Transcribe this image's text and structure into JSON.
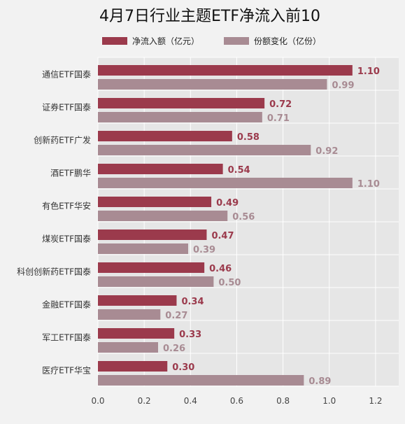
{
  "chart_data": {
    "type": "bar",
    "orientation": "horizontal",
    "title": "4月7日行业主题ETF净流入前10",
    "categories": [
      "通信ETF国泰",
      "证券ETF国泰",
      "创新药ETF广发",
      "酒ETF鹏华",
      "有色ETF华安",
      "煤炭ETF国泰",
      "科创创新药ETF国泰",
      "金融ETF国泰",
      "军工ETF国泰",
      "医疗ETF华宝"
    ],
    "series": [
      {
        "name": "净流入额（亿元）",
        "color": "#9b3a4c",
        "values": [
          1.1,
          0.72,
          0.58,
          0.54,
          0.49,
          0.47,
          0.46,
          0.34,
          0.33,
          0.3
        ],
        "labels": [
          "1.10",
          "0.72",
          "0.58",
          "0.54",
          "0.49",
          "0.47",
          "0.46",
          "0.34",
          "0.33",
          "0.30"
        ]
      },
      {
        "name": "份额变化（亿份）",
        "color": "#a88b93",
        "values": [
          0.99,
          0.71,
          0.92,
          1.1,
          0.56,
          0.39,
          0.5,
          0.27,
          0.26,
          0.89
        ],
        "labels": [
          "0.99",
          "0.71",
          "0.92",
          "1.10",
          "0.56",
          "0.39",
          "0.50",
          "0.27",
          "0.26",
          "0.89"
        ]
      }
    ],
    "xlim": [
      0,
      1.3
    ],
    "xticks": [
      "0.0",
      "0.2",
      "0.4",
      "0.6",
      "0.8",
      "1.0",
      "1.2"
    ],
    "grid": true,
    "legend_position": "top"
  },
  "colors": {
    "background": "#f2f2f2",
    "plot_background": "#e6e6e6",
    "grid": "#ffffff",
    "text": "#333333"
  }
}
